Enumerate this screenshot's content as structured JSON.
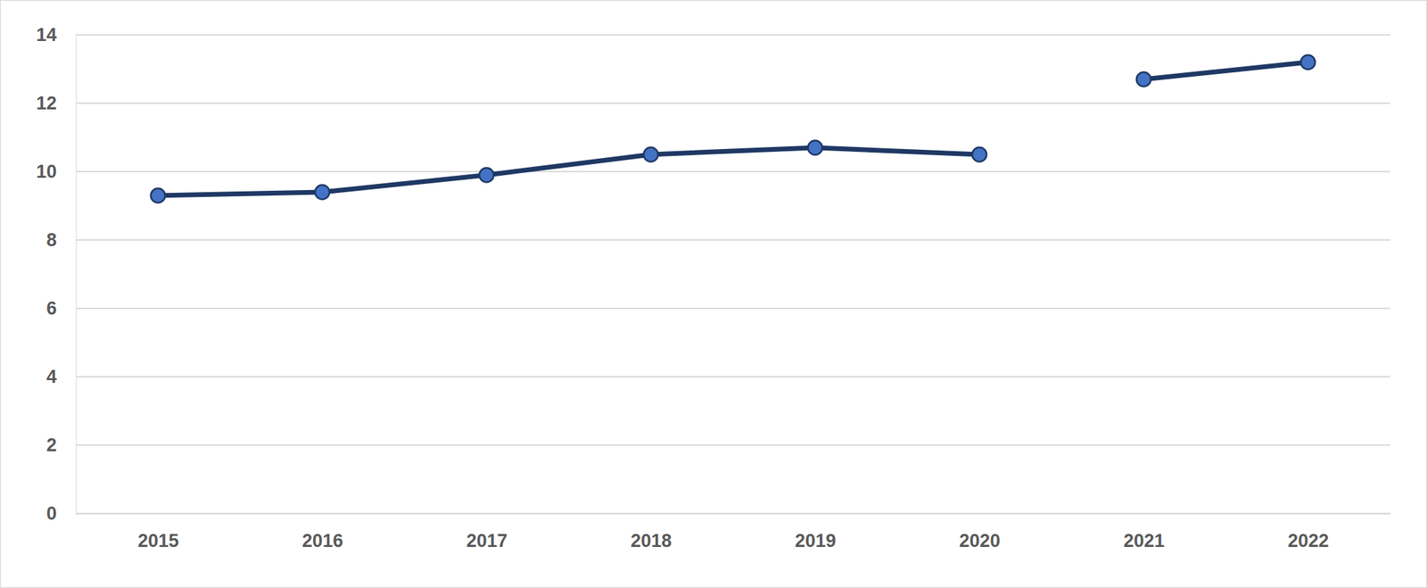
{
  "chart_data": {
    "type": "line",
    "categories": [
      "2015",
      "2016",
      "2017",
      "2018",
      "2019",
      "2020",
      "2021",
      "2022"
    ],
    "series": [
      {
        "color": "#1f3864",
        "marker": "circle",
        "values": [
          9.3,
          9.4,
          9.9,
          10.5,
          10.7,
          10.5,
          null,
          null
        ]
      },
      {
        "color": "#1f3864",
        "marker": "circle",
        "values": [
          null,
          null,
          null,
          null,
          null,
          null,
          12.7,
          13.2
        ]
      }
    ],
    "ylim": [
      0,
      14
    ],
    "yticks": [
      0,
      2,
      4,
      6,
      8,
      10,
      12,
      14
    ],
    "grid": true
  }
}
